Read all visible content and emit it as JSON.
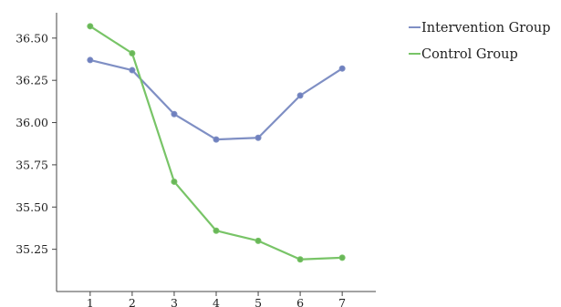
{
  "chart_data": {
    "type": "line",
    "title": "",
    "xlabel": "",
    "ylabel": "",
    "x": [
      1,
      2,
      3,
      4,
      5,
      6,
      7
    ],
    "x_tick_labels": [
      "1",
      "2",
      "3",
      "4",
      "5",
      "6",
      "7"
    ],
    "y_ticks": [
      35.25,
      35.5,
      35.75,
      36.0,
      36.25,
      36.5
    ],
    "y_tick_labels": [
      "35.25",
      "35.50",
      "35.75",
      "36.00",
      "36.25",
      "36.50"
    ],
    "ylim": [
      35.0,
      36.65
    ],
    "xlim": [
      0.2,
      7.8
    ],
    "grid": false,
    "legend_position": "top-right",
    "series": [
      {
        "name": "Intervention Group",
        "color": "#7f8fc4",
        "marker_color": "#6f80bf",
        "values": [
          36.37,
          36.31,
          36.05,
          35.9,
          35.91,
          36.16,
          36.32
        ]
      },
      {
        "name": "Control Group",
        "color": "#78c467",
        "marker_color": "#69b658",
        "values": [
          36.57,
          36.41,
          35.65,
          35.36,
          35.3,
          35.19,
          35.2
        ]
      }
    ]
  }
}
